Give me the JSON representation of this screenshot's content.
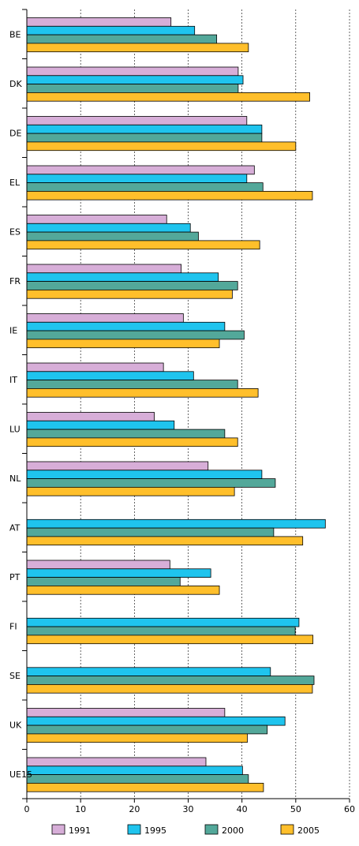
{
  "chart_data": {
    "type": "bar",
    "orientation": "horizontal",
    "title": "",
    "xlabel": "",
    "ylabel": "",
    "xlim": [
      0,
      60
    ],
    "xticks": [
      0,
      10,
      20,
      30,
      40,
      50,
      60
    ],
    "grid": "vertical dashed",
    "legend_position": "bottom",
    "categories": [
      "BE",
      "DK",
      "DE",
      "EL",
      "ES",
      "FR",
      "IE",
      "IT",
      "LU",
      "NL",
      "AT",
      "PT",
      "FI",
      "SE",
      "UK",
      "UE15"
    ],
    "series": [
      {
        "name": "1991",
        "color": "#d7aed8",
        "values": [
          26.8,
          39.3,
          40.9,
          42.3,
          26.0,
          28.7,
          29.1,
          25.4,
          23.7,
          33.7,
          null,
          26.6,
          null,
          null,
          36.8,
          33.3
        ]
      },
      {
        "name": "1995",
        "color": "#1fc4ee",
        "values": [
          31.2,
          40.2,
          43.7,
          40.9,
          30.4,
          35.6,
          36.8,
          31.0,
          27.4,
          43.7,
          55.5,
          34.2,
          50.6,
          45.3,
          48.0,
          40.1
        ]
      },
      {
        "name": "2000",
        "color": "#53a89a",
        "values": [
          35.3,
          39.3,
          43.7,
          43.9,
          31.9,
          39.2,
          40.4,
          39.2,
          36.8,
          46.2,
          45.9,
          28.5,
          49.9,
          53.4,
          44.7,
          41.2
        ]
      },
      {
        "name": "2005",
        "color": "#ffbf2b",
        "values": [
          41.2,
          52.6,
          50.0,
          53.1,
          43.3,
          38.2,
          35.8,
          43.0,
          39.2,
          38.6,
          51.3,
          35.8,
          53.2,
          53.1,
          41.0,
          44.0
        ]
      }
    ]
  }
}
